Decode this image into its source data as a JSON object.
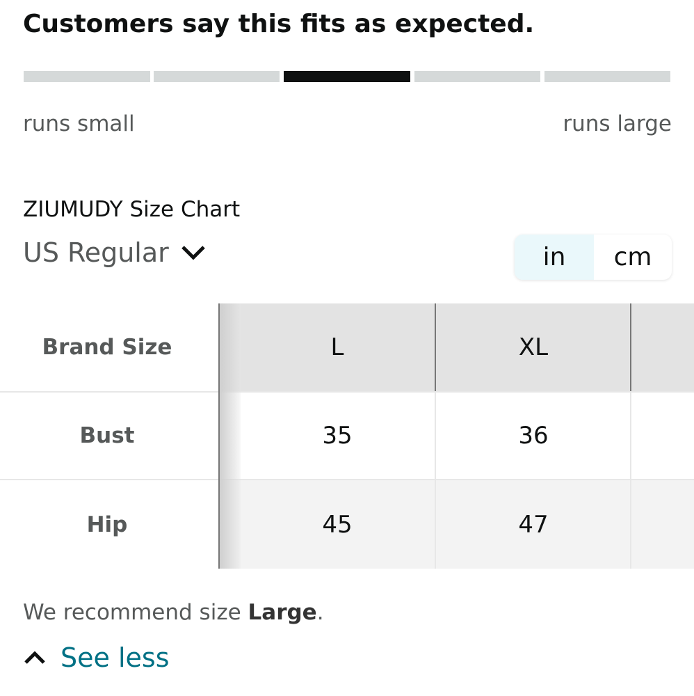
{
  "header": {
    "title": "Customers say this fits as expected."
  },
  "fit": {
    "left_label": "runs small",
    "right_label": "runs large"
  },
  "size_chart": {
    "title": "ZIUMUDY Size Chart",
    "region": "US Regular",
    "units": [
      "in",
      "cm"
    ]
  },
  "table": {
    "header": [
      "Brand Size",
      "L",
      "XL"
    ],
    "rows": [
      [
        "Bust",
        35,
        36
      ],
      [
        "Hip",
        45,
        47
      ]
    ]
  },
  "recommendation": {
    "prefix": "We recommend size ",
    "size": "Large",
    "suffix": "."
  },
  "toggle": {
    "label": "See less"
  }
}
